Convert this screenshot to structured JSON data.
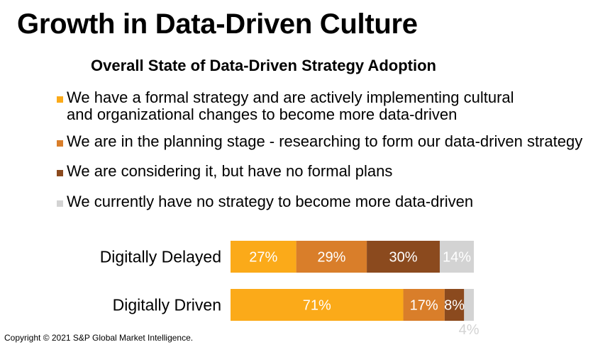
{
  "page": {
    "title": "Growth in Data-Driven Culture",
    "footer": "Copyright © 2021 S&P Global Market Intelligence."
  },
  "chart_data": {
    "type": "bar",
    "orientation": "horizontal",
    "stacked": true,
    "title": "Overall State of Data-Driven Strategy Adoption",
    "categories": [
      "Digitally Delayed",
      "Digitally Driven"
    ],
    "series": [
      {
        "name": "We have a formal strategy and are actively implementing cultural\nand organizational changes to become more data-driven",
        "color": "#FBAA19",
        "values": [
          27,
          71
        ],
        "labels": [
          "27%",
          "71%"
        ]
      },
      {
        "name": "We are in the planning stage - researching to form our data-driven strategy",
        "color": "#D97E2A",
        "values": [
          29,
          17
        ],
        "labels": [
          "29%",
          "17%"
        ]
      },
      {
        "name": "We are considering it, but have no formal plans",
        "color": "#8B4A1E",
        "values": [
          30,
          8
        ],
        "labels": [
          "30%",
          "8%"
        ]
      },
      {
        "name": "We currently have no strategy to become more data-driven",
        "color": "#D3D3D3",
        "values": [
          14,
          4
        ],
        "labels": [
          "14%",
          "4%"
        ]
      }
    ],
    "xlim": [
      0,
      100
    ],
    "legend_position": "top",
    "grid": false,
    "data_label_color": "#FFFFFF",
    "outside_label_color": "#D3D3D3"
  }
}
